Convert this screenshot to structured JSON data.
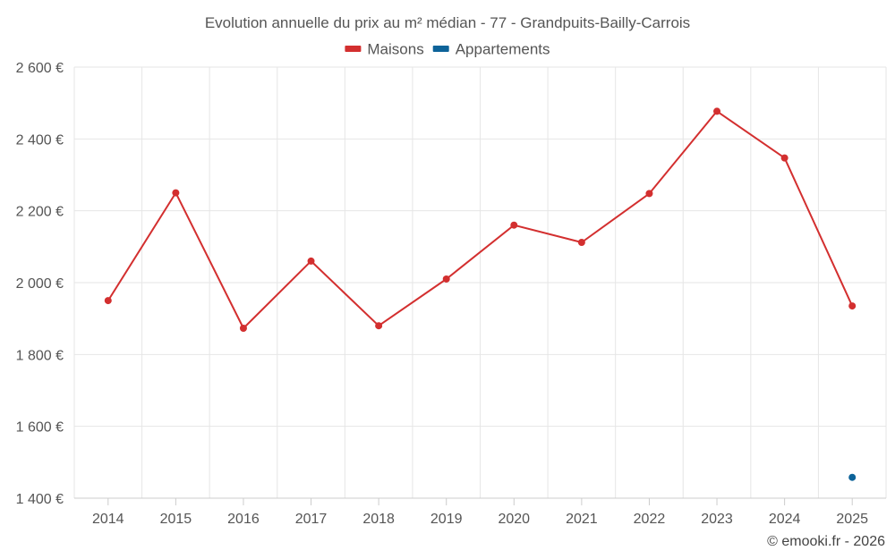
{
  "chart_data": {
    "type": "line",
    "title": "Evolution annuelle du prix au m² médian - 77 - Grandpuits-Bailly-Carrois",
    "x": [
      2014,
      2015,
      2016,
      2017,
      2018,
      2019,
      2020,
      2021,
      2022,
      2023,
      2024,
      2025
    ],
    "x_tick_labels": [
      "2014",
      "2015",
      "2016",
      "2017",
      "2018",
      "2019",
      "2020",
      "2021",
      "2022",
      "2023",
      "2024",
      "2025"
    ],
    "y_ticks": [
      1400,
      1600,
      1800,
      2000,
      2200,
      2400,
      2600
    ],
    "y_tick_labels": [
      "1 400 €",
      "1 600 €",
      "1 800 €",
      "2 000 €",
      "2 200 €",
      "2 400 €",
      "2 600 €"
    ],
    "ylim": [
      1400,
      2600
    ],
    "grid": true,
    "legend_position": "top-center",
    "series": [
      {
        "name": "Maisons",
        "color": "#d32f2f",
        "values": [
          1950,
          2250,
          1873,
          2060,
          1880,
          2010,
          2160,
          2112,
          2248,
          2477,
          2347,
          1935
        ]
      },
      {
        "name": "Appartements",
        "color": "#0d6399",
        "values": [
          null,
          null,
          null,
          null,
          null,
          null,
          null,
          null,
          null,
          null,
          null,
          1458
        ]
      }
    ]
  },
  "footer": {
    "credit": "© emooki.fr - 2026"
  }
}
